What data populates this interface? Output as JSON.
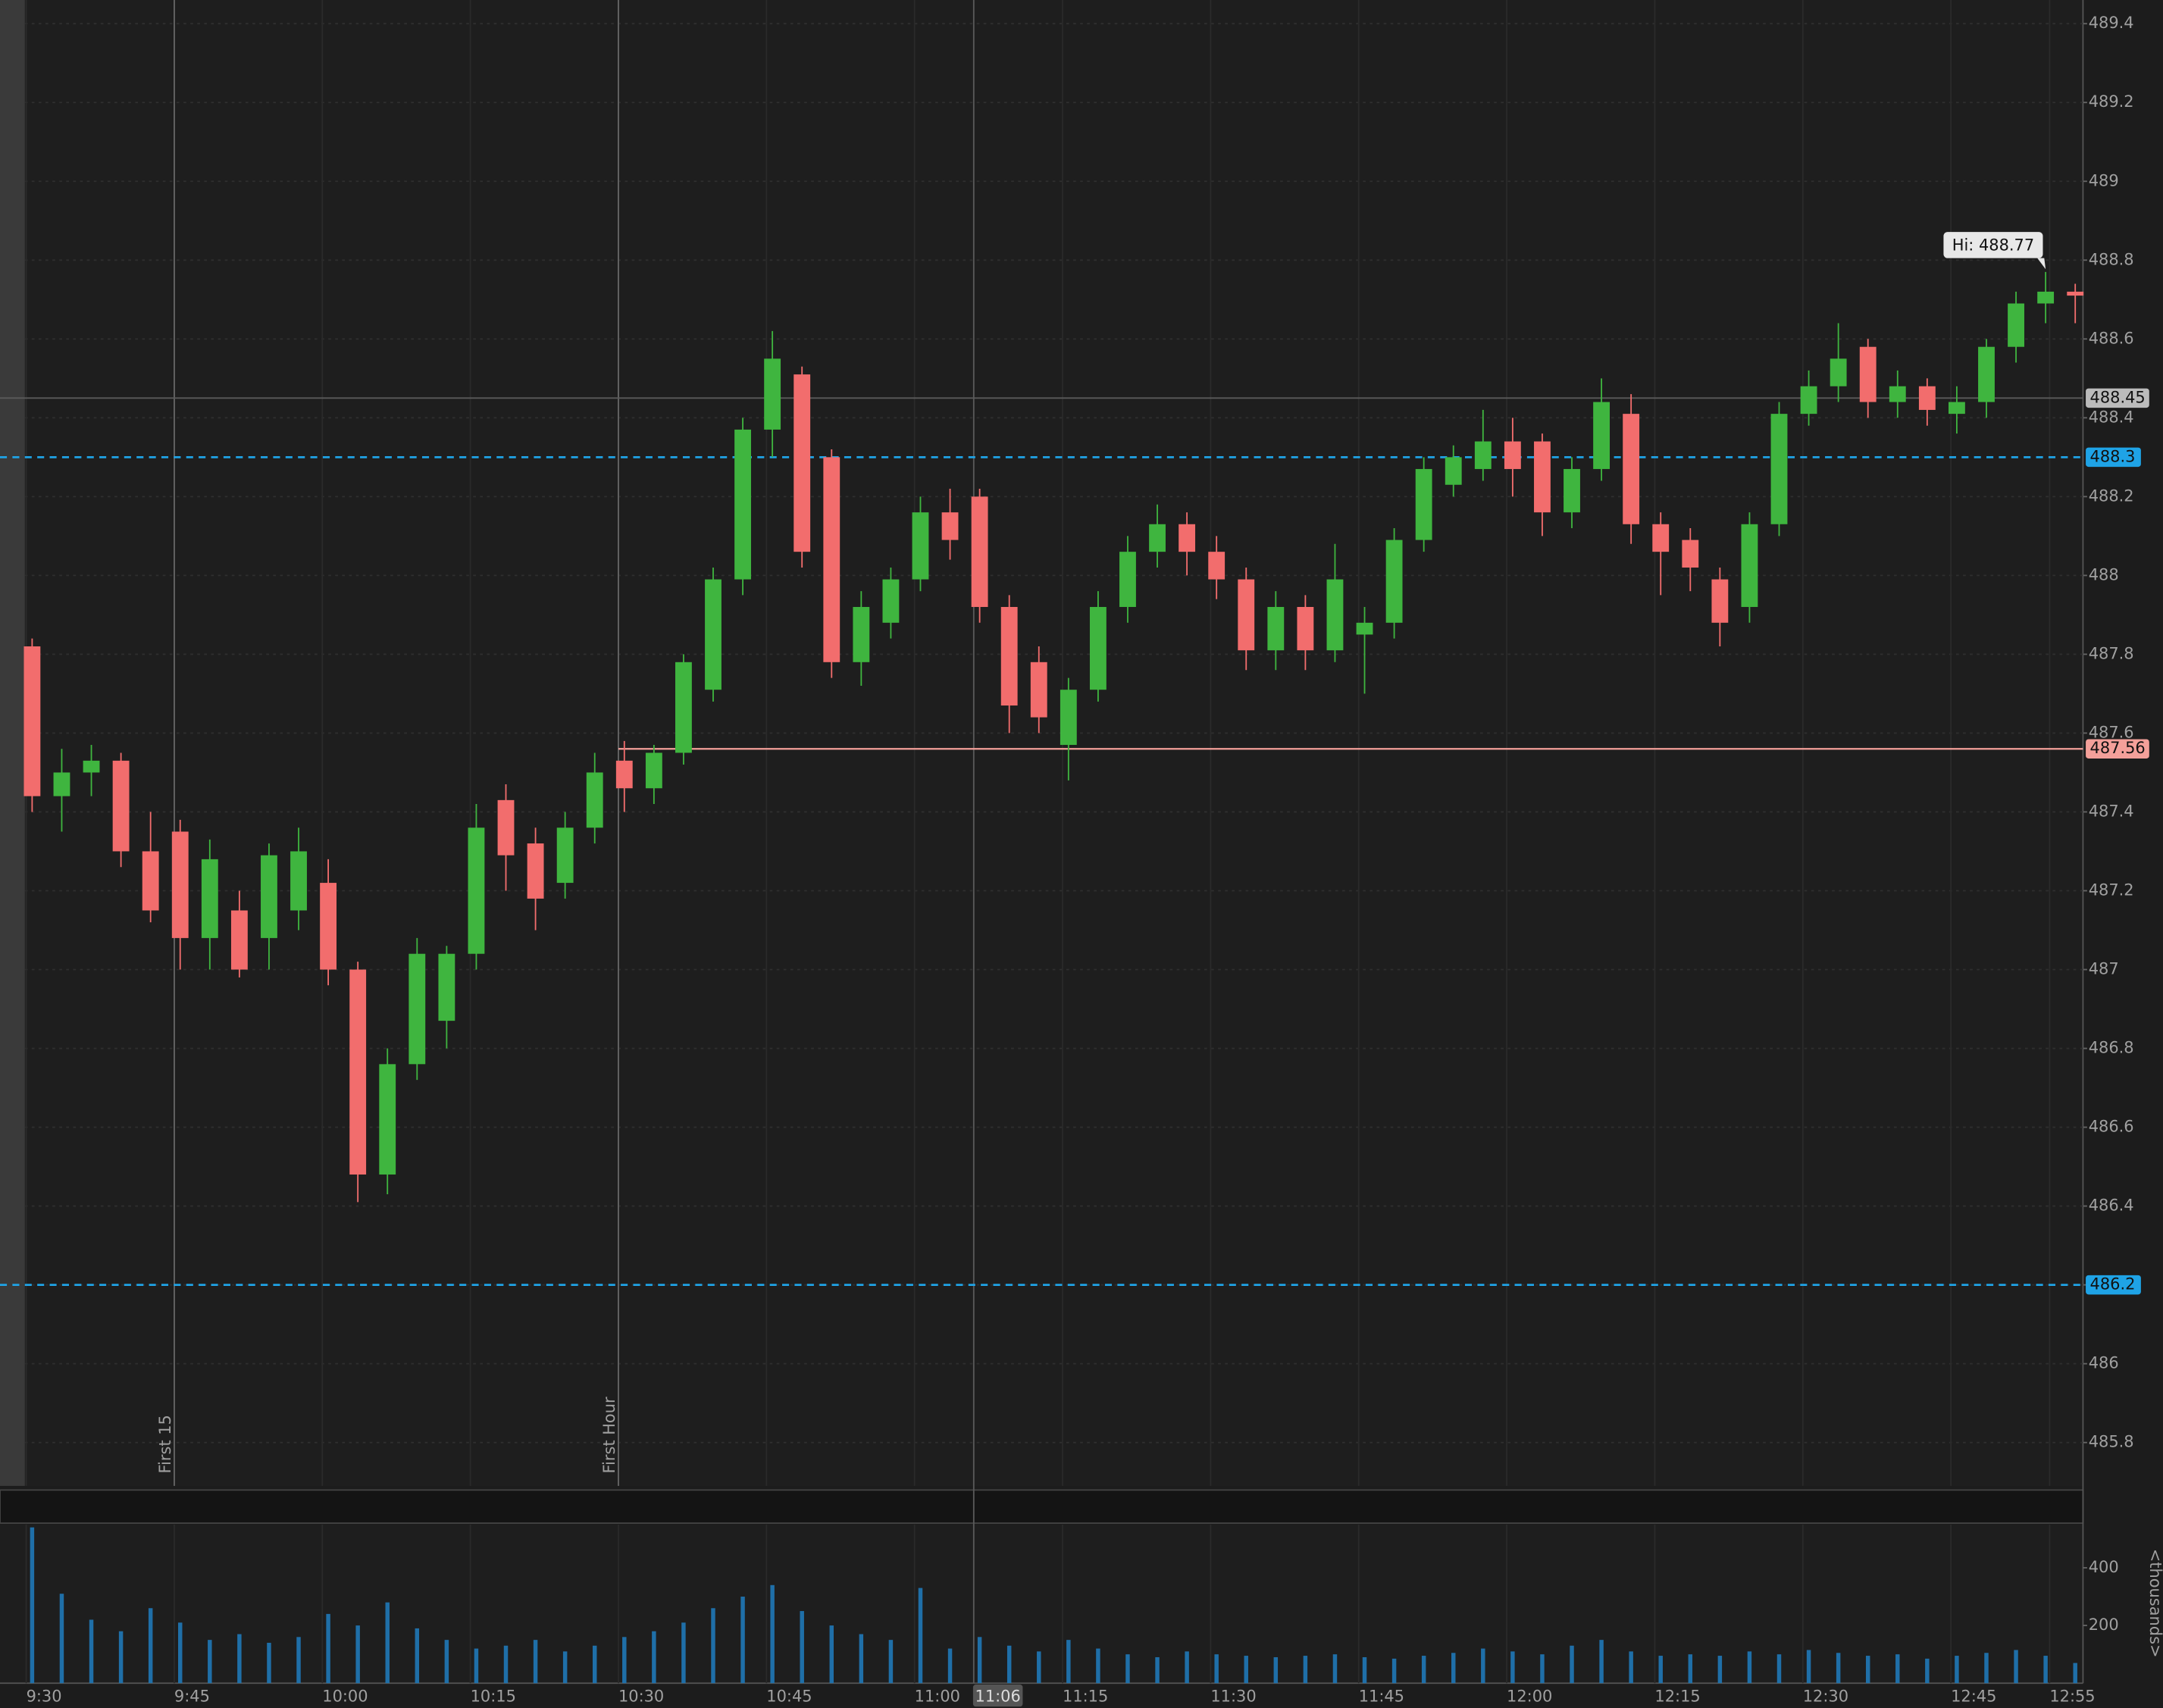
{
  "chart_data": {
    "type": "candlestick",
    "x": [
      "9:30",
      "9:33",
      "9:36",
      "9:39",
      "9:42",
      "9:45",
      "9:48",
      "9:51",
      "9:54",
      "9:57",
      "10:00",
      "10:03",
      "10:06",
      "10:09",
      "10:12",
      "10:15",
      "10:18",
      "10:21",
      "10:24",
      "10:27",
      "10:30",
      "10:33",
      "10:36",
      "10:39",
      "10:42",
      "10:45",
      "10:48",
      "10:51",
      "10:54",
      "10:57",
      "11:00",
      "11:03",
      "11:06",
      "11:09",
      "11:12",
      "11:15",
      "11:18",
      "11:21",
      "11:24",
      "11:27",
      "11:30",
      "11:33",
      "11:36",
      "11:39",
      "11:42",
      "11:45",
      "11:48",
      "11:51",
      "11:54",
      "11:57",
      "12:00",
      "12:03",
      "12:06",
      "12:09",
      "12:12",
      "12:15",
      "12:18",
      "12:21",
      "12:24",
      "12:27",
      "12:30",
      "12:33",
      "12:36",
      "12:39",
      "12:42",
      "12:45",
      "12:48",
      "12:51",
      "12:54",
      "12:57"
    ],
    "open": [
      487.82,
      487.44,
      487.5,
      487.53,
      487.3,
      487.35,
      487.08,
      487.15,
      487.08,
      487.15,
      487.22,
      487.0,
      486.48,
      486.76,
      486.87,
      487.04,
      487.43,
      487.32,
      487.22,
      487.36,
      487.53,
      487.46,
      487.55,
      487.71,
      487.99,
      488.37,
      488.51,
      488.3,
      487.78,
      487.88,
      487.99,
      488.16,
      488.2,
      487.92,
      487.78,
      487.57,
      487.71,
      487.92,
      488.06,
      488.13,
      488.06,
      487.99,
      487.81,
      487.92,
      487.81,
      487.85,
      487.88,
      488.09,
      488.23,
      488.27,
      488.34,
      488.34,
      488.16,
      488.27,
      488.41,
      488.13,
      488.09,
      487.99,
      487.92,
      488.13,
      488.41,
      488.48,
      488.58,
      488.44,
      488.48,
      488.41,
      488.44,
      488.58,
      488.69,
      488.72
    ],
    "high": [
      487.84,
      487.56,
      487.57,
      487.55,
      487.4,
      487.38,
      487.33,
      487.2,
      487.32,
      487.36,
      487.28,
      487.02,
      486.8,
      487.08,
      487.06,
      487.42,
      487.47,
      487.36,
      487.4,
      487.55,
      487.58,
      487.57,
      487.8,
      488.02,
      488.4,
      488.62,
      488.53,
      488.32,
      487.96,
      488.02,
      488.2,
      488.22,
      488.22,
      487.95,
      487.82,
      487.74,
      487.96,
      488.1,
      488.18,
      488.16,
      488.1,
      488.02,
      487.96,
      487.95,
      488.08,
      487.92,
      488.12,
      488.3,
      488.33,
      488.42,
      488.4,
      488.36,
      488.3,
      488.5,
      488.46,
      488.16,
      488.12,
      488.02,
      488.16,
      488.44,
      488.52,
      488.64,
      488.6,
      488.52,
      488.5,
      488.48,
      488.6,
      488.72,
      488.77,
      488.74
    ],
    "low": [
      487.4,
      487.35,
      487.44,
      487.26,
      487.12,
      487.0,
      487.0,
      486.98,
      487.0,
      487.1,
      486.96,
      486.41,
      486.43,
      486.72,
      486.8,
      487.0,
      487.2,
      487.1,
      487.18,
      487.32,
      487.4,
      487.42,
      487.52,
      487.68,
      487.95,
      488.3,
      488.02,
      487.74,
      487.72,
      487.84,
      487.96,
      488.04,
      487.88,
      487.6,
      487.6,
      487.48,
      487.68,
      487.88,
      488.02,
      488.0,
      487.94,
      487.76,
      487.76,
      487.76,
      487.78,
      487.7,
      487.84,
      488.06,
      488.2,
      488.24,
      488.2,
      488.1,
      488.12,
      488.24,
      488.08,
      487.95,
      487.96,
      487.82,
      487.88,
      488.1,
      488.38,
      488.44,
      488.4,
      488.4,
      488.38,
      488.36,
      488.4,
      488.54,
      488.64,
      488.64
    ],
    "close": [
      487.44,
      487.5,
      487.53,
      487.3,
      487.15,
      487.08,
      487.28,
      487.0,
      487.29,
      487.3,
      487.0,
      486.48,
      486.76,
      487.04,
      487.04,
      487.36,
      487.29,
      487.18,
      487.36,
      487.5,
      487.46,
      487.55,
      487.78,
      487.99,
      488.37,
      488.55,
      488.06,
      487.78,
      487.92,
      487.99,
      488.16,
      488.09,
      487.92,
      487.67,
      487.64,
      487.71,
      487.92,
      488.06,
      488.13,
      488.06,
      487.99,
      487.81,
      487.92,
      487.81,
      487.99,
      487.88,
      488.09,
      488.27,
      488.3,
      488.34,
      488.27,
      488.16,
      488.27,
      488.44,
      488.13,
      488.06,
      488.02,
      487.88,
      488.13,
      488.41,
      488.48,
      488.55,
      488.44,
      488.48,
      488.42,
      488.44,
      488.58,
      488.69,
      488.72,
      488.71
    ],
    "up_color": "#3fb53f",
    "down_color": "#f26d6d",
    "ylim": [
      485.69,
      489.46
    ],
    "yticks": [
      485.8,
      486,
      486.2,
      486.4,
      486.6,
      486.8,
      487,
      487.2,
      487.4,
      487.6,
      487.8,
      488,
      488.2,
      488.4,
      488.6,
      488.8,
      489,
      489.2,
      489.4
    ],
    "xticks": [
      "9:30",
      "9:45",
      "10:00",
      "10:15",
      "10:30",
      "10:45",
      "11:00",
      "11:15",
      "11:30",
      "11:45",
      "12:00",
      "12:15",
      "12:30",
      "12:45",
      "12:55"
    ],
    "levels": [
      {
        "value": 488.3,
        "color": "#1fa3e6"
      },
      {
        "value": 486.2,
        "color": "#1fa3e6"
      }
    ],
    "reference_line": {
      "value": 487.56,
      "start": "10:30",
      "color": "#f4a09a"
    },
    "crosshair": {
      "price": 488.45,
      "time": "11:06"
    },
    "markers": [
      {
        "time": "9:45",
        "label": "First 15"
      },
      {
        "time": "10:30",
        "label": "First Hour"
      }
    ],
    "hi_label": "Hi: 488.77",
    "volume": {
      "color": "#1f6fa8",
      "ylim": [
        0,
        550
      ],
      "yticks": [
        200,
        400
      ],
      "label": "<thousands>",
      "values": [
        540,
        310,
        220,
        180,
        260,
        210,
        150,
        170,
        140,
        160,
        240,
        200,
        280,
        190,
        150,
        120,
        130,
        150,
        110,
        130,
        160,
        180,
        210,
        260,
        300,
        340,
        250,
        200,
        170,
        150,
        330,
        120,
        160,
        130,
        110,
        150,
        120,
        100,
        90,
        110,
        100,
        95,
        90,
        95,
        100,
        90,
        85,
        95,
        105,
        120,
        110,
        100,
        130,
        150,
        110,
        95,
        100,
        95,
        110,
        100,
        115,
        105,
        95,
        100,
        85,
        95,
        105,
        115,
        95,
        70
      ]
    }
  }
}
